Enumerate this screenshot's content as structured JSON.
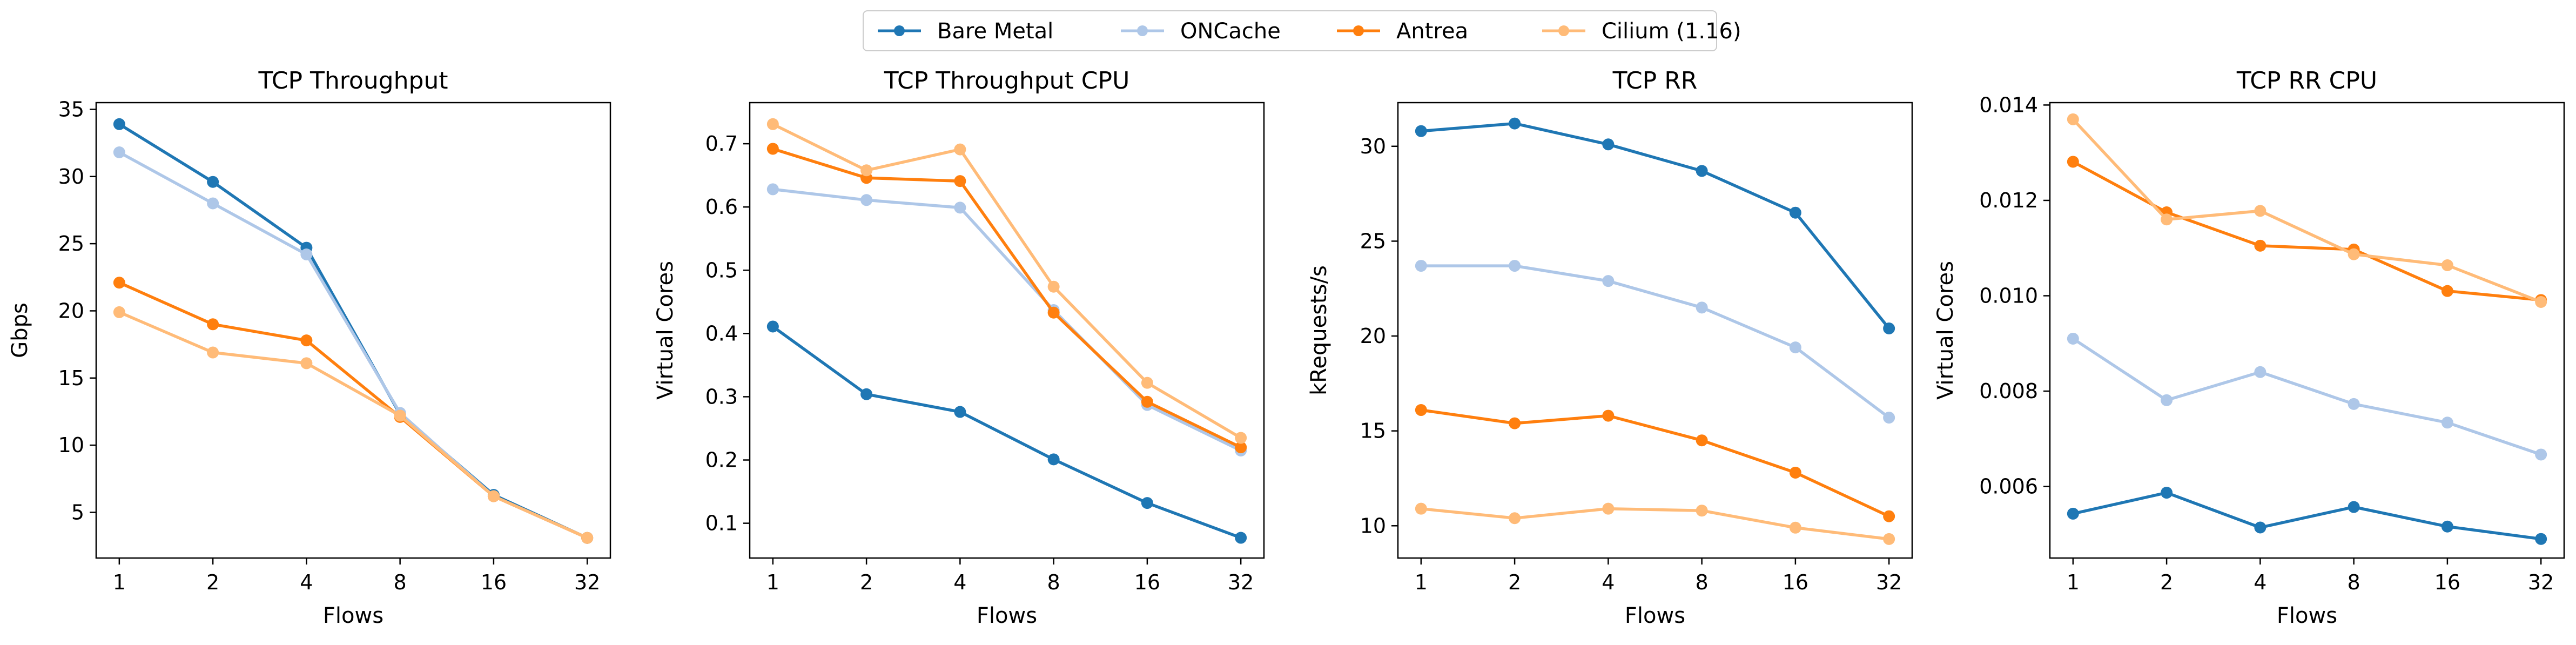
{
  "legend": {
    "placement": "top-center",
    "entries": [
      "Bare Metal",
      "ONCache",
      "Antrea",
      "Cilium (1.16)"
    ]
  },
  "series_colors": {
    "Bare Metal": "#1f77b4",
    "ONCache": "#aec7e8",
    "Antrea": "#ff7f0e",
    "Cilium (1.16)": "#ffbb78"
  },
  "chart_data": [
    {
      "type": "line",
      "title": "TCP Throughput",
      "xlabel": "Flows",
      "ylabel": "Gbps",
      "categories": [
        "1",
        "2",
        "4",
        "8",
        "16",
        "32"
      ],
      "ylim": [
        1.6,
        35.5
      ],
      "yticks": [
        5,
        10,
        15,
        20,
        25,
        30,
        35
      ],
      "ytick_labels": [
        "5",
        "10",
        "15",
        "20",
        "25",
        "30",
        "35"
      ],
      "grid": false,
      "series": [
        {
          "name": "Bare Metal",
          "values": [
            33.9,
            29.6,
            24.7,
            12.3,
            6.3,
            3.1
          ]
        },
        {
          "name": "ONCache",
          "values": [
            31.8,
            28.0,
            24.2,
            12.4,
            6.2,
            3.1
          ]
        },
        {
          "name": "Antrea",
          "values": [
            22.1,
            19.0,
            17.8,
            12.1,
            6.2,
            3.1
          ]
        },
        {
          "name": "Cilium (1.16)",
          "values": [
            19.9,
            16.9,
            16.1,
            12.2,
            6.2,
            3.1
          ]
        }
      ]
    },
    {
      "type": "line",
      "title": "TCP Throughput CPU",
      "xlabel": "Flows",
      "ylabel": "Virtual Cores",
      "categories": [
        "1",
        "2",
        "4",
        "8",
        "16",
        "32"
      ],
      "ylim": [
        0.045,
        0.765
      ],
      "yticks": [
        0.1,
        0.2,
        0.3,
        0.4,
        0.5,
        0.6,
        0.7
      ],
      "ytick_labels": [
        "0.1",
        "0.2",
        "0.3",
        "0.4",
        "0.5",
        "0.6",
        "0.7"
      ],
      "grid": false,
      "series": [
        {
          "name": "Bare Metal",
          "values": [
            0.411,
            0.304,
            0.276,
            0.201,
            0.132,
            0.077
          ]
        },
        {
          "name": "ONCache",
          "values": [
            0.628,
            0.611,
            0.599,
            0.437,
            0.287,
            0.215
          ]
        },
        {
          "name": "Antrea",
          "values": [
            0.692,
            0.646,
            0.641,
            0.433,
            0.292,
            0.22
          ]
        },
        {
          "name": "Cilium (1.16)",
          "values": [
            0.731,
            0.658,
            0.691,
            0.474,
            0.322,
            0.235
          ]
        }
      ]
    },
    {
      "type": "line",
      "title": "TCP RR",
      "xlabel": "Flows",
      "ylabel": "kRequests/s",
      "categories": [
        "1",
        "2",
        "4",
        "8",
        "16",
        "32"
      ],
      "ylim": [
        8.3,
        32.3
      ],
      "yticks": [
        10,
        15,
        20,
        25,
        30
      ],
      "ytick_labels": [
        "10",
        "15",
        "20",
        "25",
        "30"
      ],
      "grid": false,
      "series": [
        {
          "name": "Bare Metal",
          "values": [
            30.8,
            31.2,
            30.1,
            28.7,
            26.5,
            20.4
          ]
        },
        {
          "name": "ONCache",
          "values": [
            23.7,
            23.7,
            22.9,
            21.5,
            19.4,
            15.7
          ]
        },
        {
          "name": "Antrea",
          "values": [
            16.1,
            15.4,
            15.8,
            14.5,
            12.8,
            10.5
          ]
        },
        {
          "name": "Cilium (1.16)",
          "values": [
            10.9,
            10.4,
            10.9,
            10.8,
            9.9,
            9.3
          ]
        }
      ]
    },
    {
      "type": "line",
      "title": "TCP RR CPU",
      "xlabel": "Flows",
      "ylabel": "Virtual Cores",
      "categories": [
        "1",
        "2",
        "4",
        "8",
        "16",
        "32"
      ],
      "ylim": [
        0.0045,
        0.01405
      ],
      "yticks": [
        0.006,
        0.008,
        0.01,
        0.012,
        0.014
      ],
      "ytick_labels": [
        "0.006",
        "0.008",
        "0.010",
        "0.012",
        "0.014"
      ],
      "grid": false,
      "series": [
        {
          "name": "Bare Metal",
          "values": [
            0.00543,
            0.00587,
            0.00514,
            0.00557,
            0.00516,
            0.0049
          ]
        },
        {
          "name": "ONCache",
          "values": [
            0.0091,
            0.00781,
            0.0084,
            0.00773,
            0.00734,
            0.00667
          ]
        },
        {
          "name": "Antrea",
          "values": [
            0.01281,
            0.01175,
            0.01105,
            0.01097,
            0.0101,
            0.00991
          ]
        },
        {
          "name": "Cilium (1.16)",
          "values": [
            0.0137,
            0.0116,
            0.01178,
            0.01087,
            0.01064,
            0.00987
          ]
        }
      ]
    }
  ]
}
